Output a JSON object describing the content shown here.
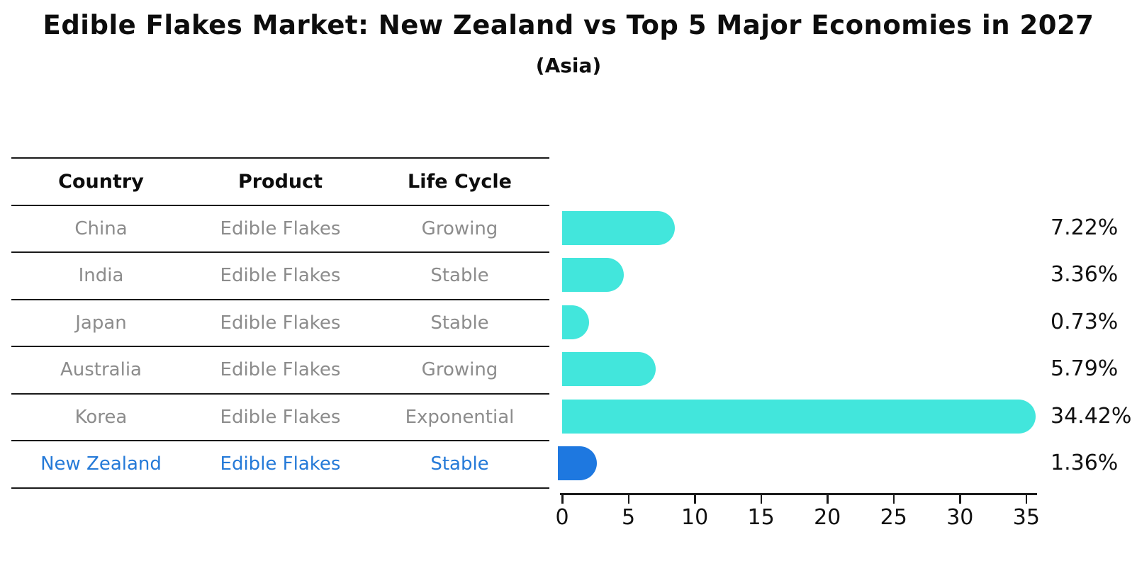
{
  "title": "Edible Flakes Market: New Zealand vs Top 5 Major Economies in 2027",
  "subtitle": "(Asia)",
  "table": {
    "headers": [
      "Country",
      "Product",
      "Life Cycle"
    ],
    "rows": [
      {
        "country": "China",
        "product": "Edible Flakes",
        "life_cycle": "Growing",
        "highlight": false
      },
      {
        "country": "India",
        "product": "Edible Flakes",
        "life_cycle": "Stable",
        "highlight": false
      },
      {
        "country": "Japan",
        "product": "Edible Flakes",
        "life_cycle": "Stable",
        "highlight": false
      },
      {
        "country": "Australia",
        "product": "Edible Flakes",
        "life_cycle": "Growing",
        "highlight": false
      },
      {
        "country": "Korea",
        "product": "Edible Flakes",
        "life_cycle": "Exponential",
        "highlight": false
      },
      {
        "country": "New Zealand",
        "product": "Edible Flakes",
        "life_cycle": "Stable",
        "highlight": true
      }
    ]
  },
  "chart_data": {
    "type": "bar",
    "orientation": "horizontal",
    "title": "Edible Flakes Market: New Zealand vs Top 5 Major Economies in 2027",
    "subtitle": "(Asia)",
    "categories": [
      "China",
      "India",
      "Japan",
      "Australia",
      "Korea",
      "New Zealand"
    ],
    "values": [
      7.22,
      3.36,
      0.73,
      5.79,
      34.42,
      1.36
    ],
    "value_labels": [
      "7.22%",
      "3.36%",
      "0.73%",
      "5.79%",
      "34.42%",
      "1.36%"
    ],
    "x_ticks": [
      0,
      5,
      10,
      15,
      20,
      25,
      30,
      35
    ],
    "xlim": [
      0,
      36
    ],
    "grid": false,
    "legend": false,
    "bar_color": "#42e6dc",
    "highlight_color": "#1e78e0",
    "highlight_index": 5,
    "highlight_text_color": "#257ad8"
  }
}
